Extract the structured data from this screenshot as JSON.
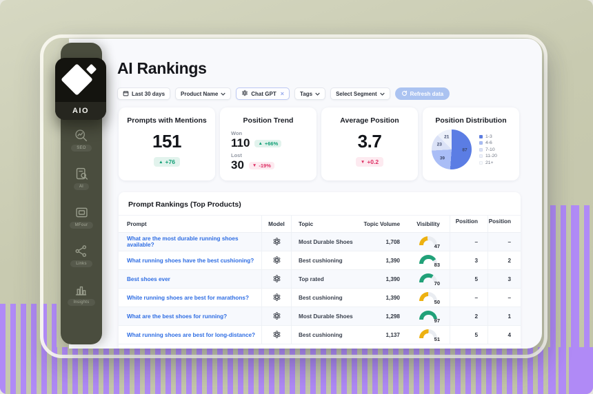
{
  "app": {
    "logo": "AIO",
    "page_title": "AI Rankings"
  },
  "sidebar": {
    "items": [
      {
        "icon": "seo-search-icon",
        "label": "SEO"
      },
      {
        "icon": "doc-search-icon",
        "label": "AI"
      },
      {
        "icon": "image-icon",
        "label": "MFour"
      },
      {
        "icon": "share-icon",
        "label": "Links"
      },
      {
        "icon": "bar-chart-icon",
        "label": "Insights"
      }
    ]
  },
  "filters": {
    "date_range": "Last 30 days",
    "product_name": "Product Name",
    "model_chip": "Chat GPT",
    "tags": "Tags",
    "segment": "Select Segment",
    "refresh_label": "Refresh data"
  },
  "stats": {
    "prompts_with_mentions": {
      "title": "Prompts with Mentions",
      "value": "151",
      "delta": "+76",
      "direction": "up"
    },
    "position_trend": {
      "title": "Position Trend",
      "won_label": "Won",
      "won_value": "110",
      "won_delta": "+66%",
      "won_direction": "up",
      "lost_label": "Lost",
      "lost_value": "30",
      "lost_delta": "-19%",
      "lost_direction": "down"
    },
    "average_position": {
      "title": "Average Position",
      "value": "3.7",
      "delta": "+0.2",
      "direction": "down"
    },
    "position_distribution": {
      "title": "Position Distribution"
    }
  },
  "chart_data": {
    "type": "pie",
    "title": "Position Distribution",
    "labels": [
      "1-3",
      "4-6",
      "7-10",
      "11-20",
      "21+"
    ],
    "values": [
      87,
      39,
      23,
      21,
      0
    ],
    "colors": [
      "#5b7de4",
      "#a9bdf6",
      "#dbe2f7",
      "#edf1fb",
      "#f8fafd"
    ],
    "legend_position": "right"
  },
  "table": {
    "title": "Prompt Rankings (Top Products)",
    "columns": [
      "Prompt",
      "Model",
      "Topic",
      "Topic Volume",
      "Visibility",
      "Position",
      "Position"
    ],
    "rows": [
      {
        "prompt": "What are the most durable running shoes available?",
        "model": "openai",
        "topic": "Most Durable Shoes",
        "volume": "1,708",
        "visibility": 47,
        "pos1": "–",
        "pos2": "–"
      },
      {
        "prompt": "What running shoes have the best cushioning?",
        "model": "openai",
        "topic": "Best cushioning",
        "volume": "1,390",
        "visibility": 83,
        "pos1": "3",
        "pos2": "2"
      },
      {
        "prompt": "Best shoes ever",
        "model": "openai",
        "topic": "Top rated",
        "volume": "1,390",
        "visibility": 70,
        "pos1": "5",
        "pos2": "3"
      },
      {
        "prompt": "White running shoes are best for marathons?",
        "model": "openai",
        "topic": "Best cushioning",
        "volume": "1,390",
        "visibility": 50,
        "pos1": "–",
        "pos2": "–"
      },
      {
        "prompt": "What are the best shoes for running?",
        "model": "openai",
        "topic": "Most Durable Shoes",
        "volume": "1,298",
        "visibility": 97,
        "pos1": "2",
        "pos2": "1"
      },
      {
        "prompt": "What running shoes are best for long-distance?",
        "model": "openai",
        "topic": "Best cushioning",
        "volume": "1,137",
        "visibility": 51,
        "pos1": "5",
        "pos2": "4"
      }
    ]
  },
  "colors": {
    "accent_green": "#0f9e74",
    "accent_red": "#dd2d62",
    "gauge_green": "#21a179",
    "gauge_yellow": "#edb111",
    "link_blue": "#2e6de3",
    "purple_bars": "#b08af6",
    "row_stripe": "#f7f9fd"
  }
}
